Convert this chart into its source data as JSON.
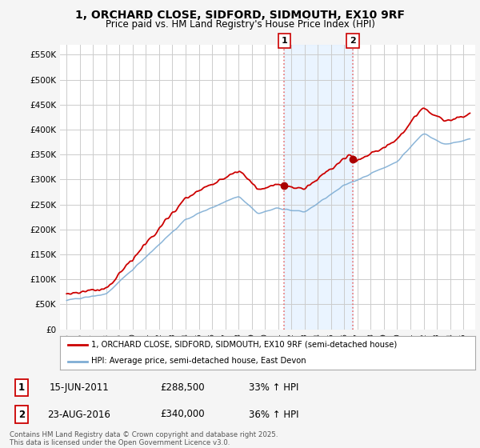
{
  "title_line1": "1, ORCHARD CLOSE, SIDFORD, SIDMOUTH, EX10 9RF",
  "title_line2": "Price paid vs. HM Land Registry's House Price Index (HPI)",
  "legend_label_red": "1, ORCHARD CLOSE, SIDFORD, SIDMOUTH, EX10 9RF (semi-detached house)",
  "legend_label_blue": "HPI: Average price, semi-detached house, East Devon",
  "transaction1_label": "1",
  "transaction1_date": "15-JUN-2011",
  "transaction1_price": "£288,500",
  "transaction1_hpi": "33% ↑ HPI",
  "transaction1_year": 2011.46,
  "transaction1_value": 288500,
  "transaction2_label": "2",
  "transaction2_date": "23-AUG-2016",
  "transaction2_price": "£340,000",
  "transaction2_hpi": "36% ↑ HPI",
  "transaction2_year": 2016.64,
  "transaction2_value": 340000,
  "footer": "Contains HM Land Registry data © Crown copyright and database right 2025.\nThis data is licensed under the Open Government Licence v3.0.",
  "ylim": [
    0,
    570000
  ],
  "yticks": [
    0,
    50000,
    100000,
    150000,
    200000,
    250000,
    300000,
    350000,
    400000,
    450000,
    500000,
    550000
  ],
  "ytick_labels": [
    "£0",
    "£50K",
    "£100K",
    "£150K",
    "£200K",
    "£250K",
    "£300K",
    "£350K",
    "£400K",
    "£450K",
    "£500K",
    "£550K"
  ],
  "background_color": "#f5f5f5",
  "plot_bg_color": "#ffffff",
  "grid_color": "#cccccc",
  "red_color": "#cc0000",
  "blue_color": "#7eadd4",
  "highlight_bg_color": "#ddeeff",
  "dot_color": "#aa0000"
}
